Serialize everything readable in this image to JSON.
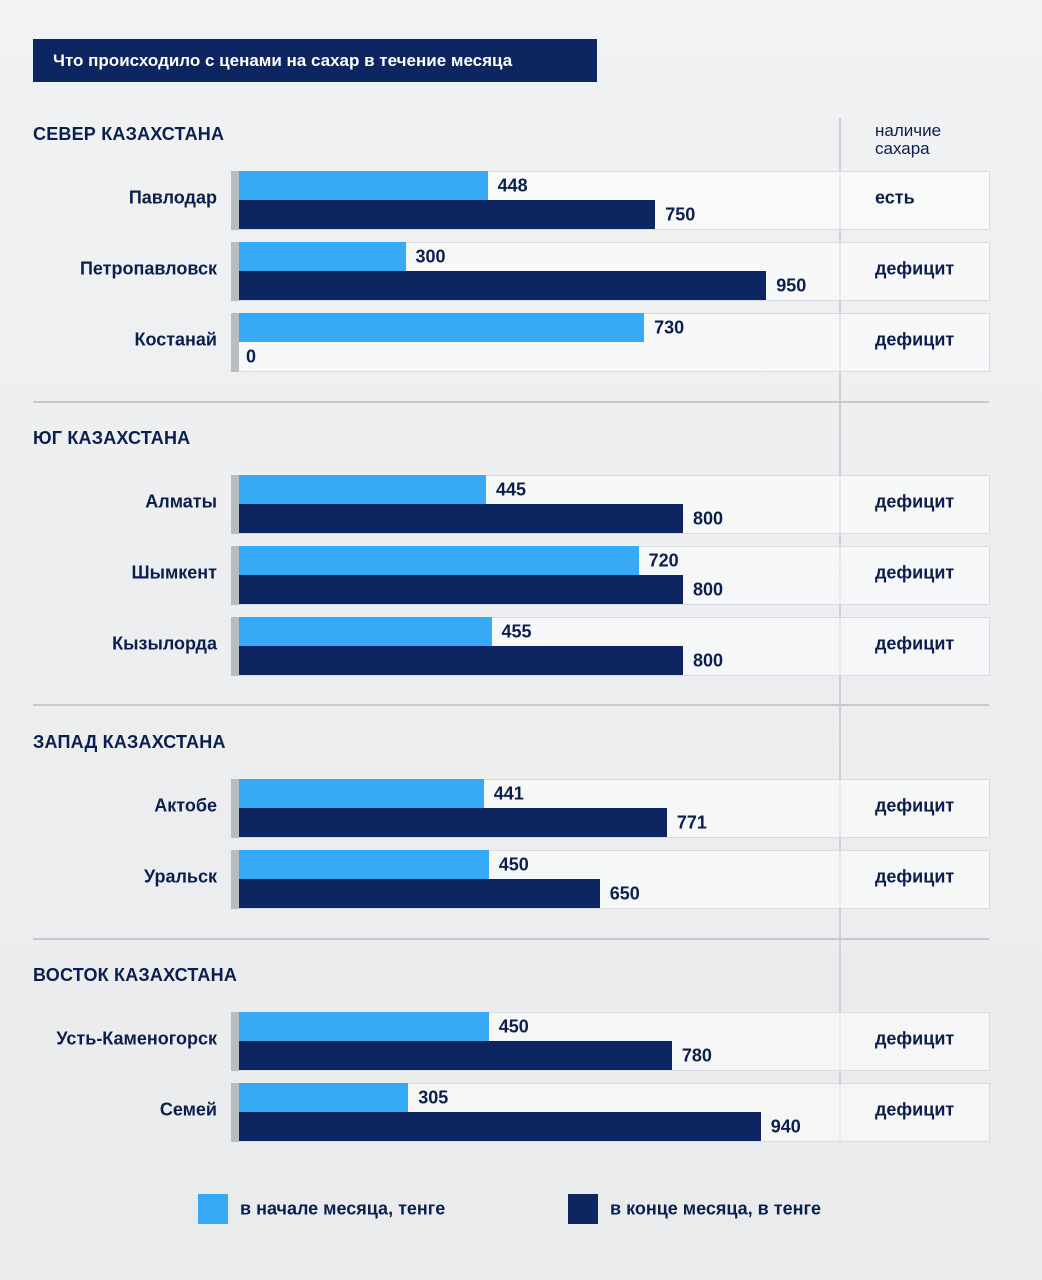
{
  "chart_data": {
    "type": "bar",
    "title": "Что происходило с ценами на сахар в течение месяца",
    "availability_header": [
      "наличие",
      "сахара"
    ],
    "series": [
      {
        "name": "в начале месяца, тенге",
        "color": "#36aaf7"
      },
      {
        "name": "в конце месяца, в тенге",
        "color": "#0d2560"
      }
    ],
    "regions": [
      {
        "name": "СЕВЕР КАЗАХСТАНА",
        "cities": [
          {
            "name": "Павлодар",
            "start": 448,
            "end": 750,
            "availability": "есть"
          },
          {
            "name": "Петропавловск",
            "start": 300,
            "end": 950,
            "availability": "дефицит"
          },
          {
            "name": "Костанай",
            "start": 730,
            "end": 0,
            "availability": "дефицит"
          }
        ]
      },
      {
        "name": "ЮГ КАЗАХСТАНА",
        "cities": [
          {
            "name": "Алматы",
            "start": 445,
            "end": 800,
            "availability": "дефицит"
          },
          {
            "name": "Шымкент",
            "start": 720,
            "end": 800,
            "availability": "дефицит"
          },
          {
            "name": "Кызылорда",
            "start": 455,
            "end": 800,
            "availability": "дефицит"
          }
        ]
      },
      {
        "name": "ЗАПАД КАЗАХСТАНА",
        "cities": [
          {
            "name": "Актобе",
            "start": 441,
            "end": 771,
            "availability": "дефицит"
          },
          {
            "name": "Уральск",
            "start": 450,
            "end": 650,
            "availability": "дефицит"
          }
        ]
      },
      {
        "name": "ВОСТОК КАЗАХСТАНА",
        "cities": [
          {
            "name": "Усть-Каменогорск",
            "start": 450,
            "end": 780,
            "availability": "дефицит"
          },
          {
            "name": "Семей",
            "start": 305,
            "end": 940,
            "availability": "дефицит"
          }
        ]
      }
    ]
  }
}
